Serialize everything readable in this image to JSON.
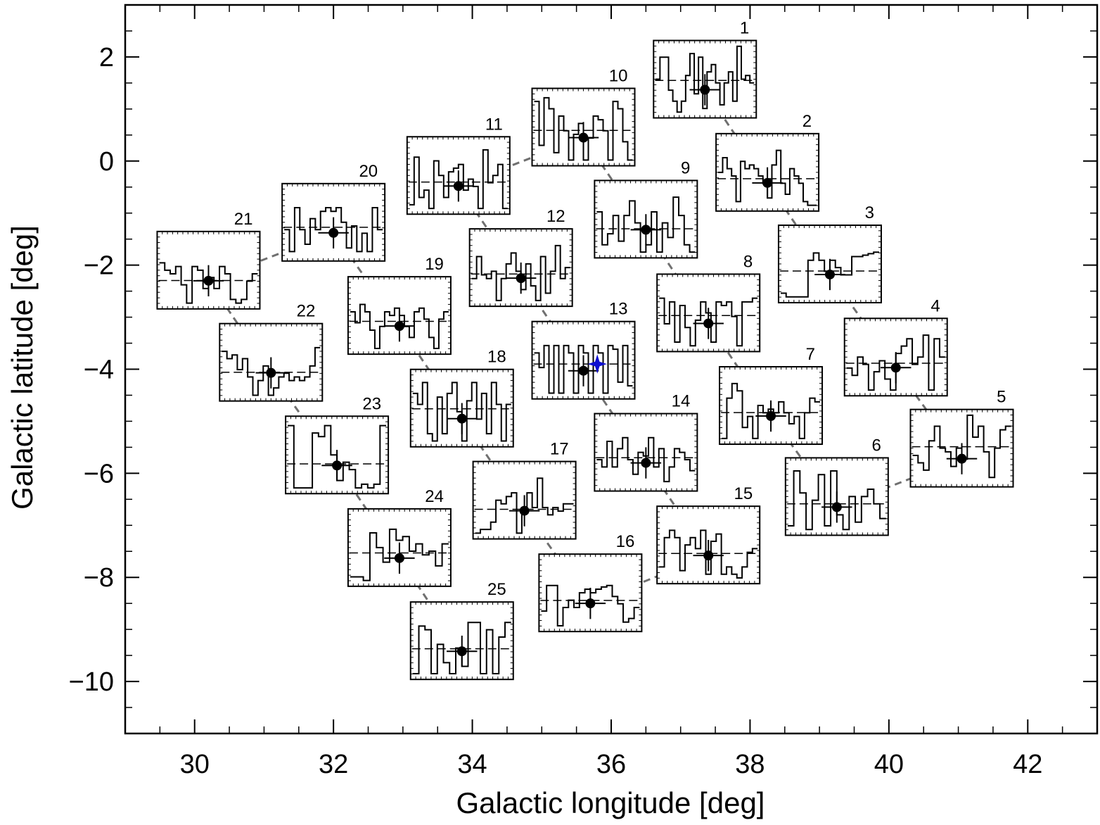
{
  "chart_data": {
    "type": "scatter",
    "title": "",
    "xlabel": "Galactic longitude [deg]",
    "ylabel": "Galactic latitude [deg]",
    "xlim": [
      29,
      43
    ],
    "ylim": [
      -11,
      3
    ],
    "x_ticks": [
      30,
      32,
      34,
      36,
      38,
      40,
      42
    ],
    "x_tick_labels": [
      "30",
      "32",
      "34",
      "36",
      "38",
      "40",
      "42"
    ],
    "y_ticks": [
      2,
      0,
      -2,
      -4,
      -6,
      -8,
      -10
    ],
    "y_tick_labels": [
      "2",
      "0",
      "−2",
      "−4",
      "−6",
      "−8",
      "−10"
    ],
    "grid": false,
    "points": [
      {
        "id": "1",
        "l": 37.35,
        "b": 1.37
      },
      {
        "id": "2",
        "l": 38.25,
        "b": -0.42
      },
      {
        "id": "3",
        "l": 39.15,
        "b": -2.18
      },
      {
        "id": "4",
        "l": 40.1,
        "b": -3.97
      },
      {
        "id": "5",
        "l": 41.05,
        "b": -5.72
      },
      {
        "id": "6",
        "l": 39.25,
        "b": -6.65
      },
      {
        "id": "7",
        "l": 38.3,
        "b": -4.9
      },
      {
        "id": "8",
        "l": 37.4,
        "b": -3.12
      },
      {
        "id": "9",
        "l": 36.5,
        "b": -1.32
      },
      {
        "id": "10",
        "l": 35.6,
        "b": 0.45
      },
      {
        "id": "11",
        "l": 33.8,
        "b": -0.48
      },
      {
        "id": "12",
        "l": 34.7,
        "b": -2.25
      },
      {
        "id": "13",
        "l": 35.6,
        "b": -4.03
      },
      {
        "id": "14",
        "l": 36.5,
        "b": -5.8
      },
      {
        "id": "15",
        "l": 37.4,
        "b": -7.58
      },
      {
        "id": "16",
        "l": 35.7,
        "b": -8.5
      },
      {
        "id": "17",
        "l": 34.75,
        "b": -6.72
      },
      {
        "id": "18",
        "l": 33.85,
        "b": -4.95
      },
      {
        "id": "19",
        "l": 32.95,
        "b": -3.17
      },
      {
        "id": "20",
        "l": 32.0,
        "b": -1.38
      },
      {
        "id": "21",
        "l": 30.2,
        "b": -2.3
      },
      {
        "id": "22",
        "l": 31.1,
        "b": -4.07
      },
      {
        "id": "23",
        "l": 32.05,
        "b": -5.85
      },
      {
        "id": "24",
        "l": 32.95,
        "b": -7.63
      },
      {
        "id": "25",
        "l": 33.85,
        "b": -9.42
      }
    ],
    "point_error": {
      "l": 0.22,
      "b": 0.3
    },
    "blue_star": {
      "l": 35.8,
      "b": -3.9,
      "color": "#1010d0"
    },
    "path_order": [
      "1",
      "2",
      "3",
      "4",
      "5",
      "6",
      "7",
      "8",
      "9",
      "10",
      "11",
      "12",
      "13",
      "14",
      "15",
      "16",
      "17",
      "18",
      "19",
      "20",
      "21",
      "22",
      "23",
      "24",
      "25"
    ],
    "panel_histograms": {
      "1": [
        0.5,
        0.8,
        0.8,
        0.35,
        0.2,
        0.05,
        0.2,
        0.55,
        0.85,
        0.3,
        0.8,
        0.1,
        0.6,
        0.7,
        0.45,
        0.15,
        0.45,
        0.6,
        0.2,
        0.95,
        0.5,
        0.55,
        0.45
      ],
      "2": [
        0.5,
        0.7,
        0.55,
        0.45,
        0.1,
        0.65,
        0.55,
        0.6,
        0.55,
        0.45,
        0.35,
        0.15,
        0.6,
        0.8,
        0.35,
        0.2,
        0.55,
        0.45,
        0.35,
        0.1,
        0.05,
        0.05
      ],
      "3": [
        0.1,
        0.05,
        0.05,
        0.05,
        0.05,
        0.55,
        0.65,
        0.55,
        0.4,
        0.55,
        0.45,
        0.35,
        0.35,
        0.6,
        0.6,
        0.62,
        0.64,
        0.66
      ],
      "4": [
        0.35,
        0.25,
        0.5,
        0.4,
        0.05,
        0.3,
        0.45,
        0.2,
        0.05,
        0.55,
        0.65,
        0.75,
        0.4,
        0.5,
        0.8,
        0.05,
        0.75,
        0.5
      ],
      "5": [
        0.4,
        0.3,
        0.2,
        0.6,
        0.8,
        0.5,
        0.45,
        0.25,
        0.5,
        0.35,
        0.95,
        0.65,
        0.8,
        0.45,
        0.1,
        0.5,
        0.75,
        0.8
      ],
      "6": [
        0.1,
        0.85,
        0.55,
        0.05,
        0.45,
        0.8,
        0.1,
        0.85,
        0.25,
        0.05,
        0.5,
        0.15,
        0.5,
        0.6,
        0.4,
        0.2
      ],
      "7": [
        0.05,
        0.6,
        0.8,
        0.7,
        0.2,
        0.35,
        0.05,
        0.5,
        0.4,
        0.45,
        0.4,
        0.55,
        0.4,
        0.25,
        0.35,
        0.05,
        0.4,
        0.6,
        0.55
      ],
      "8": [
        0.7,
        0.35,
        0.65,
        0.1,
        0.6,
        0.3,
        0.05,
        0.4,
        0.65,
        0.5,
        0.1,
        0.65,
        0.6,
        0.65,
        0.45,
        0.05,
        0.65,
        0.65,
        0.7
      ],
      "9": [
        0.6,
        0.15,
        0.3,
        0.55,
        0.2,
        0.55,
        0.75,
        0.45,
        0.05,
        0.15,
        0.6,
        0.05,
        0.45,
        0.25,
        0.8,
        0.55,
        0.15,
        0.05
      ],
      "10": [
        0.85,
        0.25,
        0.9,
        0.75,
        0.15,
        0.65,
        0.45,
        0.05,
        0.4,
        0.55,
        0.05,
        0.35,
        0.65,
        0.6,
        0.45,
        0.05,
        0.85,
        0.75,
        0.3,
        0.05
      ],
      "11": [
        0.1,
        0.75,
        0.2,
        0.3,
        0.05,
        0.7,
        0.5,
        0.2,
        0.55,
        0.6,
        0.65,
        0.3,
        0.45,
        0.35,
        0.05,
        0.85,
        0.4,
        0.5,
        0.65,
        0.05
      ],
      "12": [
        0.35,
        0.65,
        0.4,
        0.35,
        0.45,
        0.05,
        0.35,
        0.55,
        0.7,
        0.45,
        0.2,
        0.55,
        0.25,
        0.05,
        0.65,
        0.15,
        0.45,
        0.8,
        0.35,
        0.5
      ],
      "13": [
        0.6,
        0.4,
        0.7,
        0.05,
        0.7,
        0.05,
        0.7,
        0.6,
        0.05,
        0.7,
        0.6,
        0.05,
        0.7,
        0.6,
        0.05,
        0.7,
        0.65,
        0.2,
        0.7,
        0.15
      ],
      "14": [
        0.4,
        0.3,
        0.65,
        0.3,
        0.55,
        0.7,
        0.4,
        0.2,
        0.5,
        0.45,
        0.7,
        0.3,
        0.55,
        0.1,
        0.3,
        0.55,
        0.5,
        0.4,
        0.25
      ],
      "15": [
        0.2,
        0.6,
        0.7,
        0.6,
        0.15,
        0.5,
        0.6,
        0.45,
        0.7,
        0.1,
        0.55,
        0.65,
        0.1,
        0.2,
        0.1,
        0.05,
        0.2,
        0.4,
        0.45
      ],
      "16": [
        0.25,
        0.6,
        0.6,
        0.05,
        0.3,
        0.4,
        0.3,
        0.5,
        0.55,
        0.5,
        0.55,
        0.58,
        0.6,
        0.45,
        0.35,
        0.1,
        0.15,
        0.3
      ],
      "17": [
        0.05,
        0.1,
        0.1,
        0.2,
        0.5,
        0.45,
        0.55,
        0.6,
        0.05,
        0.4,
        0.6,
        0.4,
        0.8,
        0.4,
        0.3,
        0.4,
        0.35,
        0.45,
        0.45
      ],
      "18": [
        0.7,
        0.55,
        0.85,
        0.15,
        0.05,
        0.65,
        0.15,
        0.7,
        0.85,
        0.45,
        0.05,
        0.6,
        0.85,
        0.35,
        0.7,
        0.15,
        0.85,
        0.55,
        0.05,
        0.55
      ],
      "19": [
        0.55,
        0.4,
        0.65,
        0.55,
        0.3,
        0.05,
        0.35,
        0.55,
        0.5,
        0.6,
        0.5,
        0.35,
        0.2,
        0.55,
        0.6,
        0.45,
        0.2,
        0.05,
        0.45,
        0.55
      ],
      "20": [
        0.4,
        0.1,
        0.7,
        0.4,
        0.2,
        0.55,
        0.4,
        0.65,
        0.7,
        0.65,
        0.7,
        0.5,
        0.15,
        0.45,
        0.1,
        0.35,
        0.1,
        0.7,
        0.4
      ],
      "21": [
        0.6,
        0.5,
        0.45,
        0.55,
        0.3,
        0.05,
        0.55,
        0.5,
        0.25,
        0.4,
        0.25,
        0.55,
        0.45,
        0.1,
        0.05,
        0.1,
        0.35,
        0.45
      ],
      "22": [
        0.65,
        0.55,
        0.6,
        0.4,
        0.55,
        0.3,
        0.05,
        0.25,
        0.45,
        0.05,
        0.15,
        0.3,
        0.35,
        0.25,
        0.3,
        0.25,
        0.3,
        0.45,
        0.7
      ],
      "23": [
        0.9,
        0.05,
        0.05,
        0.05,
        0.8,
        0.75,
        0.9,
        0.5,
        0.15,
        0.4,
        0.3,
        0.05,
        0.1,
        0.05,
        0.1,
        0.9
      ],
      "24": [
        0.1,
        0.1,
        0.05,
        0.7,
        0.5,
        0.3,
        0.75,
        0.6,
        0.65,
        0.45,
        0.55,
        0.4,
        0.45,
        0.25,
        0.55
      ],
      "25": [
        0.05,
        0.7,
        0.65,
        0.05,
        0.45,
        0.2,
        0.05,
        0.4,
        0.15,
        0.75,
        0.75,
        0.05,
        0.65,
        0.05,
        0.55,
        0.75
      ]
    }
  }
}
